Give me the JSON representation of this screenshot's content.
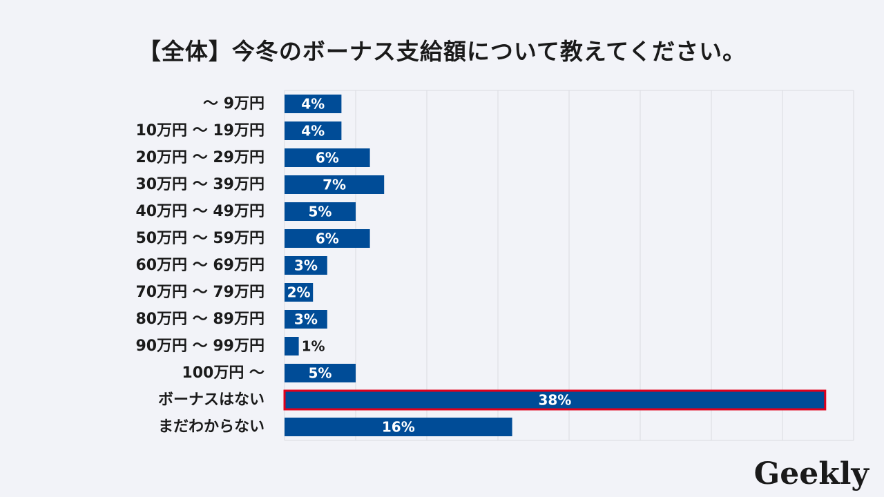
{
  "brand": {
    "logo_text": "Geekly"
  },
  "chart_data": {
    "type": "bar",
    "orientation": "horizontal",
    "title": "【全体】今冬のボーナス支給額について教えてください。",
    "categories": [
      "～ 9万円",
      "10万円 ～ 19万円",
      "20万円 ～ 29万円",
      "30万円 ～ 39万円",
      "40万円 ～ 49万円",
      "50万円 ～ 59万円",
      "60万円 ～ 69万円",
      "70万円 ～ 79万円",
      "80万円 ～ 89万円",
      "90万円 ～ 99万円",
      "100万円 ～",
      "ボーナスはない",
      "まだわからない"
    ],
    "values": [
      4,
      4,
      6,
      7,
      5,
      6,
      3,
      2,
      3,
      1,
      5,
      38,
      16
    ],
    "value_labels": [
      "4%",
      "4%",
      "6%",
      "7%",
      "5%",
      "6%",
      "3%",
      "2%",
      "3%",
      "1%",
      "5%",
      "38%",
      "16%"
    ],
    "highlighted_category": "ボーナスはない",
    "xlim": [
      0,
      40
    ],
    "grid": true,
    "colors": {
      "bar": "#004c97",
      "highlight_border": "#e0001b",
      "grid": "#d9dbe1"
    }
  }
}
